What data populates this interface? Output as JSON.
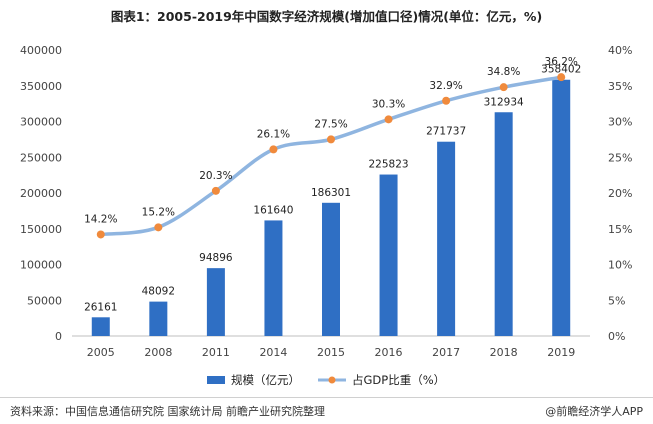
{
  "title": "图表1：2005-2019年中国数字经济规模(增加值口径)情况(单位：亿元，%)",
  "source": "资料来源：中国信息通信研究院 国家统计局 前瞻产业研究院整理",
  "credit": "@前瞻经济学人APP",
  "colors": {
    "bar": "#2f6fc4",
    "line": "#8fb5e0",
    "marker": "#f08a3c",
    "axis_text": "#444444",
    "grid": "#e6e6e6"
  },
  "chart_data": {
    "type": "bar",
    "categories": [
      "2005",
      "2008",
      "2011",
      "2014",
      "2015",
      "2016",
      "2017",
      "2018",
      "2019"
    ],
    "series": [
      {
        "name": "规模（亿元）",
        "type": "bar",
        "axis": "left",
        "values": [
          26161,
          48092,
          94896,
          161640,
          186301,
          225823,
          271737,
          312934,
          358402
        ]
      },
      {
        "name": "占GDP比重（%）",
        "type": "line",
        "axis": "right",
        "values": [
          14.2,
          15.2,
          20.3,
          26.1,
          27.5,
          30.3,
          32.9,
          34.8,
          36.2
        ],
        "labels": [
          "14.2%",
          "15.2%",
          "20.3%",
          "26.1%",
          "27.5%",
          "30.3%",
          "32.9%",
          "34.8%",
          "36.2%"
        ]
      }
    ],
    "ylim_left": [
      0,
      400000
    ],
    "yticks_left": [
      "0",
      "50000",
      "100000",
      "150000",
      "200000",
      "250000",
      "300000",
      "350000",
      "400000"
    ],
    "ylim_right": [
      0,
      40
    ],
    "yticks_right": [
      "0%",
      "5%",
      "10%",
      "15%",
      "20%",
      "25%",
      "30%",
      "35%",
      "40%"
    ],
    "grid": false,
    "legend_position": "bottom"
  }
}
